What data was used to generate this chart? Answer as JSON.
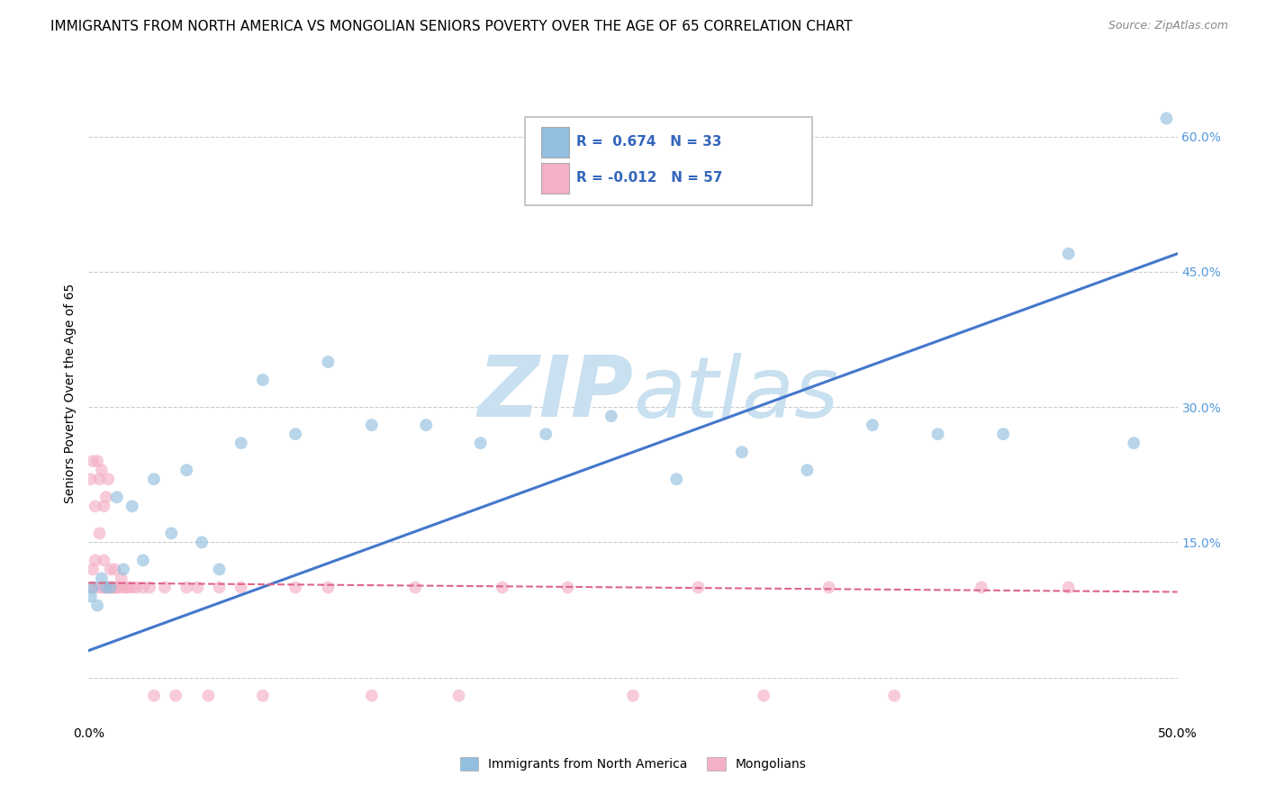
{
  "title": "IMMIGRANTS FROM NORTH AMERICA VS MONGOLIAN SENIORS POVERTY OVER THE AGE OF 65 CORRELATION CHART",
  "source": "Source: ZipAtlas.com",
  "ylabel": "Seniors Poverty Over the Age of 65",
  "x_min": 0.0,
  "x_max": 0.5,
  "y_min": -0.05,
  "y_max": 0.68,
  "x_ticks": [
    0.0,
    0.1,
    0.2,
    0.3,
    0.4,
    0.5
  ],
  "x_tick_labels_bottom": [
    "0.0%",
    "",
    "",
    "",
    "",
    "50.0%"
  ],
  "y_ticks": [
    0.0,
    0.15,
    0.3,
    0.45,
    0.6
  ],
  "y_tick_labels_left": [
    "",
    "",
    "",
    "",
    ""
  ],
  "y_tick_labels_right": [
    "",
    "15.0%",
    "30.0%",
    "45.0%",
    "60.0%"
  ],
  "legend_entries": [
    {
      "label": "Immigrants from North America",
      "color": "#aec6e8",
      "R": "0.674",
      "N": "33"
    },
    {
      "label": "Mongolians",
      "color": "#f4b8c8",
      "R": "-0.012",
      "N": "57"
    }
  ],
  "blue_scatter_x": [
    0.001,
    0.002,
    0.004,
    0.006,
    0.008,
    0.01,
    0.013,
    0.016,
    0.02,
    0.025,
    0.03,
    0.038,
    0.045,
    0.052,
    0.06,
    0.07,
    0.08,
    0.095,
    0.11,
    0.13,
    0.155,
    0.18,
    0.21,
    0.24,
    0.27,
    0.3,
    0.33,
    0.36,
    0.39,
    0.42,
    0.45,
    0.48,
    0.495
  ],
  "blue_scatter_y": [
    0.09,
    0.1,
    0.08,
    0.11,
    0.1,
    0.1,
    0.2,
    0.12,
    0.19,
    0.13,
    0.22,
    0.16,
    0.23,
    0.15,
    0.12,
    0.26,
    0.33,
    0.27,
    0.35,
    0.28,
    0.28,
    0.26,
    0.27,
    0.29,
    0.22,
    0.25,
    0.23,
    0.28,
    0.27,
    0.27,
    0.47,
    0.26,
    0.62
  ],
  "pink_scatter_x": [
    0.001,
    0.001,
    0.002,
    0.002,
    0.003,
    0.003,
    0.004,
    0.004,
    0.005,
    0.005,
    0.006,
    0.006,
    0.007,
    0.007,
    0.007,
    0.008,
    0.008,
    0.009,
    0.009,
    0.01,
    0.01,
    0.011,
    0.012,
    0.012,
    0.013,
    0.014,
    0.015,
    0.016,
    0.017,
    0.018,
    0.02,
    0.022,
    0.025,
    0.028,
    0.03,
    0.035,
    0.04,
    0.045,
    0.05,
    0.055,
    0.06,
    0.07,
    0.08,
    0.095,
    0.11,
    0.13,
    0.15,
    0.17,
    0.19,
    0.22,
    0.25,
    0.28,
    0.31,
    0.34,
    0.37,
    0.41,
    0.45
  ],
  "pink_scatter_y": [
    0.1,
    0.22,
    0.12,
    0.24,
    0.13,
    0.19,
    0.24,
    0.1,
    0.22,
    0.16,
    0.1,
    0.23,
    0.13,
    0.19,
    0.1,
    0.2,
    0.1,
    0.1,
    0.22,
    0.1,
    0.12,
    0.1,
    0.12,
    0.1,
    0.1,
    0.1,
    0.11,
    0.1,
    0.1,
    0.1,
    0.1,
    0.1,
    0.1,
    0.1,
    -0.02,
    0.1,
    -0.02,
    0.1,
    0.1,
    -0.02,
    0.1,
    0.1,
    -0.02,
    0.1,
    0.1,
    -0.02,
    0.1,
    -0.02,
    0.1,
    0.1,
    -0.02,
    0.1,
    -0.02,
    0.1,
    -0.02,
    0.1,
    0.1
  ],
  "blue_line_x": [
    0.0,
    0.5
  ],
  "blue_line_y": [
    0.03,
    0.47
  ],
  "pink_line_x": [
    0.0,
    0.5
  ],
  "pink_line_y": [
    0.105,
    0.095
  ],
  "watermark_top": "ZIP",
  "watermark_bottom": "atlas",
  "watermark_color": "#c8e0ef",
  "scatter_alpha": 0.65,
  "scatter_size": 100,
  "blue_scatter_color": "#92bfdf",
  "pink_scatter_color": "#f4b0c5",
  "blue_line_color": "#4477cc",
  "pink_line_color": "#dd6688",
  "background_color": "#ffffff",
  "grid_color": "#cccccc",
  "title_fontsize": 11,
  "axis_label_fontsize": 10,
  "tick_fontsize": 10,
  "right_tick_color": "#5599dd",
  "legend_R_color": "#3366bb",
  "legend_N_color": "#3366bb"
}
